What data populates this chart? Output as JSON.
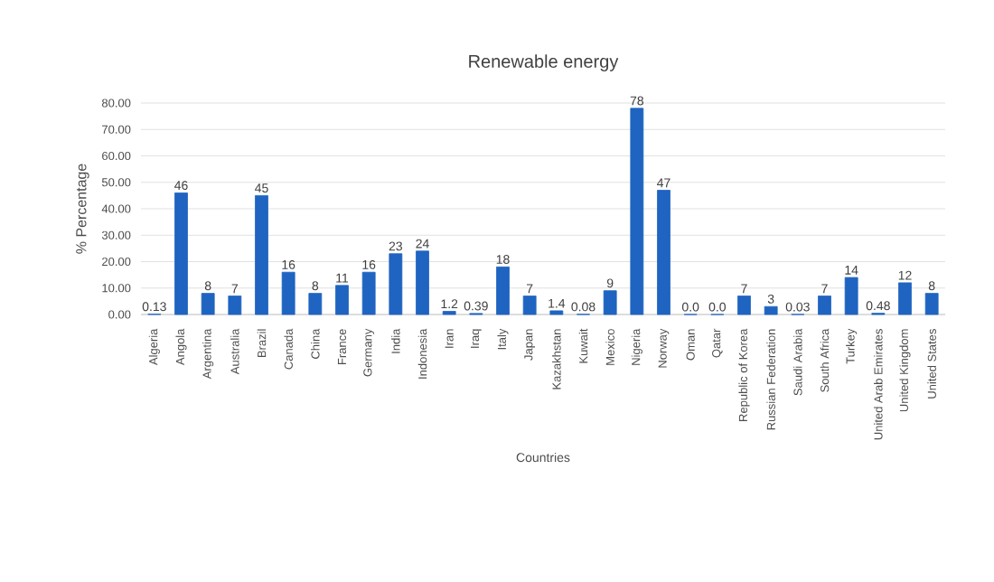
{
  "chart_data": {
    "type": "bar",
    "title": "Renewable energy",
    "xlabel": "Countries",
    "ylabel": "% Percentage",
    "categories": [
      "Algeria",
      "Angola",
      "Argentina",
      "Australia",
      "Brazil",
      "Canada",
      "China",
      "France",
      "Germany",
      "India",
      "Indonesia",
      "Iran",
      "Iraq",
      "Italy",
      "Japan",
      "Kazakhstan",
      "Kuwait",
      "Mexico",
      "Nigeria",
      "Norway",
      "Oman",
      "Qatar",
      "Republic of Korea",
      "Russian Federation",
      "Saudi Arabia",
      "South Africa",
      "Turkey",
      "United Arab Emirates",
      "United Kingdom",
      "United States"
    ],
    "values": [
      0.13,
      46,
      8,
      7,
      45,
      16,
      8,
      11,
      16,
      23,
      24,
      1.2,
      0.39,
      18,
      7,
      1.4,
      0.08,
      9,
      78,
      47,
      0.0,
      0.0,
      7,
      3,
      0.03,
      7,
      14,
      0.48,
      12,
      8
    ],
    "value_labels": [
      "0.13",
      "46",
      "8",
      "7",
      "45",
      "16",
      "8",
      "11",
      "16",
      "23",
      "24",
      "1.2",
      "0.39",
      "18",
      "7",
      "1.4",
      "0.08",
      "9",
      "78",
      "47",
      "0.0",
      "0.0",
      "7",
      "3",
      "0.03",
      "7",
      "14",
      "0.48",
      "12",
      "8"
    ],
    "color": "#1f64c0",
    "ylim": [
      0,
      80
    ],
    "yticks": [
      {
        "value": 0,
        "label": "0.00"
      },
      {
        "value": 10,
        "label": "10.00"
      },
      {
        "value": 20,
        "label": "20.00"
      },
      {
        "value": 30,
        "label": "30.00"
      },
      {
        "value": 40,
        "label": "40.00"
      },
      {
        "value": 50,
        "label": "50.00"
      },
      {
        "value": 60,
        "label": "60.00"
      },
      {
        "value": 70,
        "label": "70.00"
      },
      {
        "value": 80,
        "label": "80.00"
      }
    ],
    "grid": "y"
  }
}
